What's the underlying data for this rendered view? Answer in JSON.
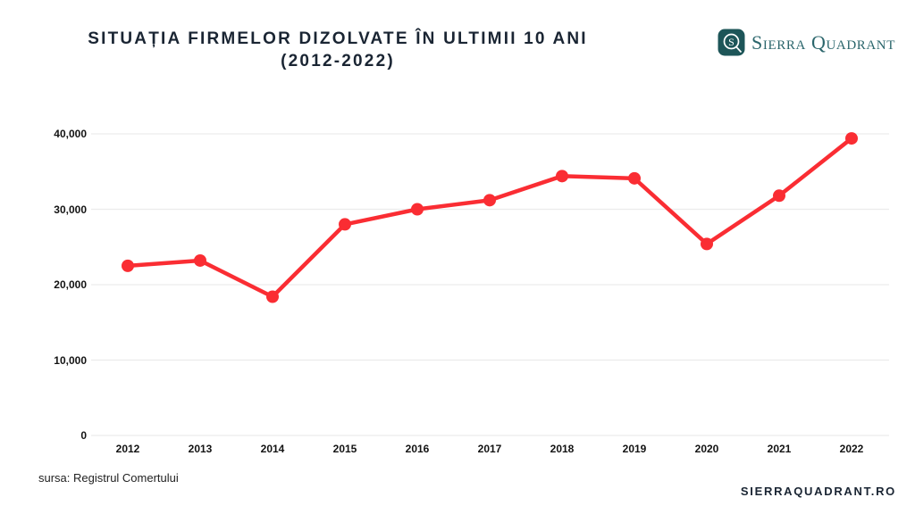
{
  "header": {
    "title_line1": "SITUAȚIA FIRMELOR DIZOLVATE ÎN ULTIMII 10 ANI",
    "title_line2": "(2012-2022)",
    "brand": "Sierra Quadrant",
    "logo_icon": "sq-monogram-icon"
  },
  "chart_data": {
    "type": "line",
    "title": "SITUAȚIA FIRMELOR DIZOLVATE ÎN ULTIMII 10 ANI (2012-2022)",
    "categories": [
      "2012",
      "2013",
      "2014",
      "2015",
      "2016",
      "2017",
      "2018",
      "2019",
      "2020",
      "2021",
      "2022"
    ],
    "values": [
      22500,
      23200,
      18400,
      28000,
      30000,
      31200,
      34400,
      34100,
      25400,
      31800,
      39400
    ],
    "xlabel": "",
    "ylabel": "",
    "ylim": [
      0,
      40000
    ],
    "grid": true,
    "legend_position": "none",
    "y_ticks": [
      {
        "value": 0,
        "label": "0"
      },
      {
        "value": 10000,
        "label": "10,000"
      },
      {
        "value": 20000,
        "label": "20,000"
      },
      {
        "value": 30000,
        "label": "30,000"
      },
      {
        "value": 40000,
        "label": "40,000"
      }
    ]
  },
  "footer": {
    "source": "sursa: Registrul Comertului",
    "website": "SIERRAQUADRANT.RO"
  },
  "colors": {
    "line": "#fa2d33",
    "marker": "#fa2d33",
    "title_navy": "#1a2533",
    "brand_teal": "#2b666c",
    "logo_square_teal": "#1d5558",
    "gridline": "#ececec",
    "tick_text": "#131313"
  }
}
